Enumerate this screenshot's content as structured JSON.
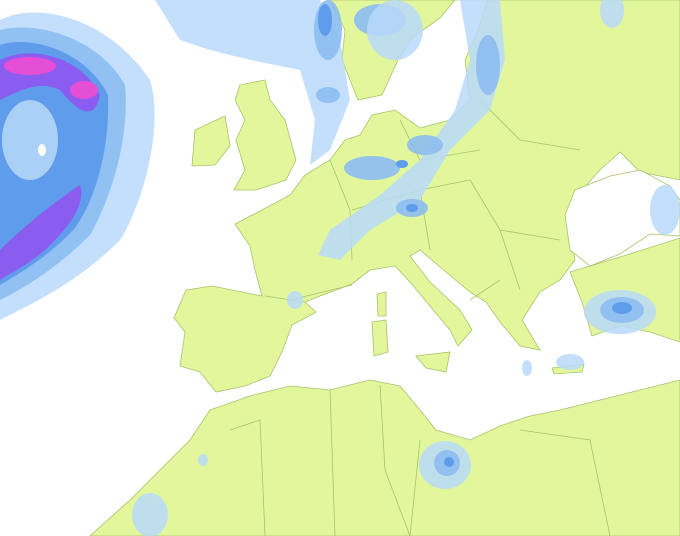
{
  "map": {
    "region": "europe-mediterranean",
    "layer": "precipitation",
    "colors": {
      "sea": "#ffffff",
      "land": "#e2f69c",
      "border": "#a9c26a",
      "precip_light": "#b9d9fa",
      "precip_medium": "#8cbcf2",
      "precip_heavy": "#5f9cec",
      "precip_very_heavy": "#8b5cf0",
      "precip_extreme": "#e44fd6"
    }
  }
}
